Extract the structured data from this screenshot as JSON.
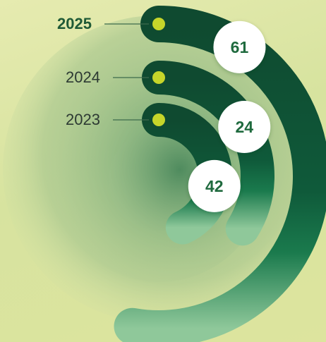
{
  "chart_data": {
    "type": "radial-bar",
    "series": [
      {
        "year": "2025",
        "value": 61,
        "highlight": true
      },
      {
        "year": "2024",
        "value": 24,
        "highlight": false
      },
      {
        "year": "2023",
        "value": 42,
        "highlight": false
      }
    ],
    "colors": {
      "arc_dark": "#0f4a30",
      "arc_mid": "#1a7a4d",
      "arc_light": "#8fc89a",
      "dot": "#c6d52a",
      "bubble": "#ffffff",
      "value_text": "#1f6a3e",
      "year_text": "#2d3a33",
      "year_text_highlight": "#1f5a36"
    }
  }
}
